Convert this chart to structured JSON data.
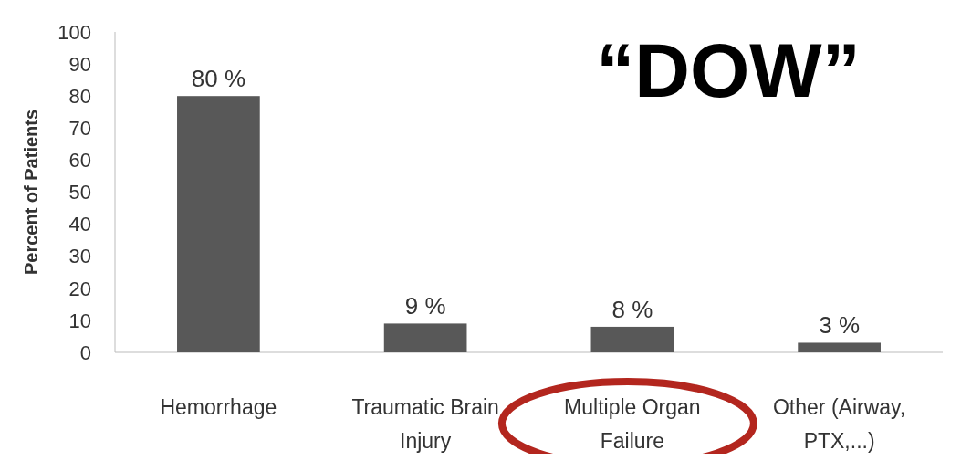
{
  "chart_data": {
    "type": "bar",
    "title": "“DOW”",
    "ylabel": "Percent of Patients",
    "categories": [
      "Hemorrhage",
      "Traumatic Brain Injury",
      "Multiple Organ Failure",
      "Other (Airway, PTX,...)"
    ],
    "values": [
      80,
      9,
      8,
      3
    ],
    "value_labels": [
      "80 %",
      "9 %",
      "8 %",
      "3 %"
    ],
    "color": "#585858",
    "ylim": [
      0,
      100
    ],
    "yticks": [
      0,
      10,
      20,
      30,
      40,
      50,
      60,
      70,
      80,
      90,
      100
    ],
    "grid": false
  }
}
